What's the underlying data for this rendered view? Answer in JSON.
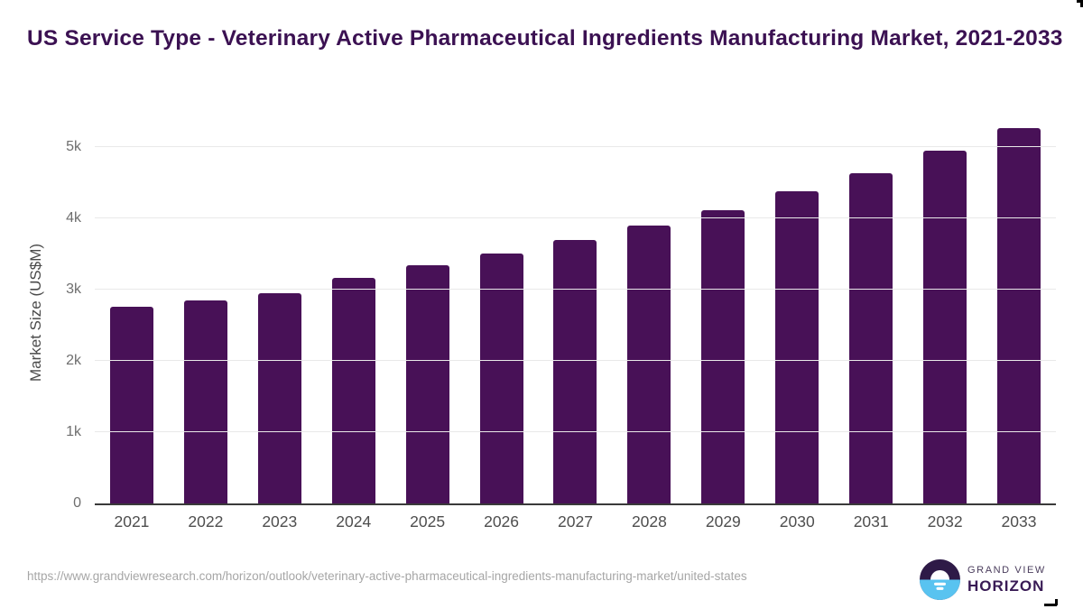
{
  "title": "US Service Type - Veterinary Active Pharmaceutical Ingredients Manufacturing Market, 2021-2033",
  "chart_data": {
    "type": "bar",
    "title": "US Service Type - Veterinary Active Pharmaceutical Ingredients Manufacturing Market, 2021-2033",
    "categories": [
      "2021",
      "2022",
      "2023",
      "2024",
      "2025",
      "2026",
      "2027",
      "2028",
      "2029",
      "2030",
      "2031",
      "2032",
      "2033"
    ],
    "values": [
      2760,
      2850,
      2950,
      3170,
      3340,
      3510,
      3700,
      3900,
      4120,
      4380,
      4640,
      4950,
      5270
    ],
    "xlabel": "",
    "ylabel": "Market Size (US$M)",
    "ylim": [
      0,
      5360
    ],
    "yticks": {
      "values": [
        0,
        1000,
        2000,
        3000,
        4000,
        5000
      ],
      "labels": [
        "0",
        "1k",
        "2k",
        "3k",
        "4k",
        "5k"
      ]
    },
    "grid": "horizontal",
    "legend": "none",
    "bar_color": "#481157"
  },
  "footer": {
    "source_url": "https://www.grandviewresearch.com/horizon/outlook/veterinary-active-pharmaceutical-ingredients-manufacturing-market/united-states",
    "logo": {
      "brand_top": "GRAND VIEW",
      "brand_bottom": "HORIZON"
    }
  },
  "colors": {
    "title": "#3B1152",
    "bar": "#481157",
    "axis_line": "#3a3a3a",
    "gridline": "#e9e9e9",
    "tick_label": "#6e6e6e",
    "x_label": "#4e4e4e",
    "y_axis_title": "#4a4a4a",
    "url_text": "#a6a6a6",
    "logo_dark_purple": "#2E1A47",
    "logo_blue": "#59C3F0",
    "logo_text_small": "#4a3c5c",
    "logo_text_big": "#391b55"
  }
}
